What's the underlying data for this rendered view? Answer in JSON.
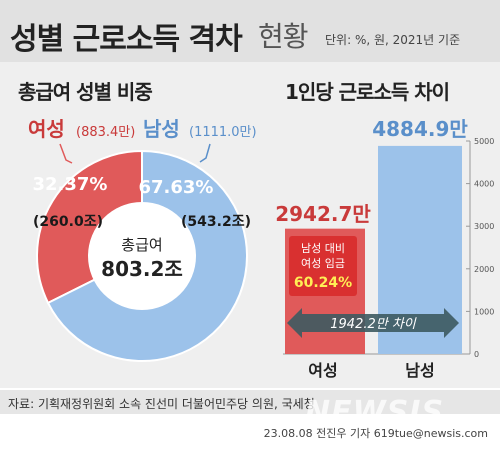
{
  "header": {
    "title": "성별 근로소득 격차",
    "subtitle": "현황",
    "unit_note": "단위: %, 원, 2021년 기준"
  },
  "colors": {
    "female": "#e05a5a",
    "female_dark": "#c93a3a",
    "male": "#9cc2ea",
    "male_text": "#5a8fca",
    "ratio_box": "#d93030",
    "arrow": "#3d5a60"
  },
  "pie": {
    "title": "총급여 성별 비중",
    "center_label": "총급여",
    "center_value": "803.2조",
    "female": {
      "name": "여성",
      "count": "(883.4만)",
      "percent": "32.37%",
      "amount": "(260.0조)"
    },
    "male": {
      "name": "남성",
      "count": "(1111.0만)",
      "percent": "67.63%",
      "amount": "(543.2조)"
    }
  },
  "bar": {
    "title": "1인당 근로소득 차이",
    "female_value": "2942.7만",
    "male_value": "4884.9만",
    "ratio_lines": [
      "남성 대비",
      "여성 임금"
    ],
    "ratio_value": "60.24%",
    "diff_label": "1942.2만 차이",
    "cat_female": "여성",
    "cat_male": "남성"
  },
  "chart_data": [
    {
      "type": "pie",
      "title": "총급여 성별 비중",
      "categories": [
        "여성",
        "남성"
      ],
      "values": [
        32.37,
        67.63
      ],
      "amounts_trillion_won": [
        260.0,
        543.2
      ],
      "workers_ten_thousand": [
        883.4,
        1111.0
      ],
      "total": 803.2
    },
    {
      "type": "bar",
      "title": "1인당 근로소득 차이",
      "categories": [
        "여성",
        "남성"
      ],
      "values": [
        2942.7,
        4884.9
      ],
      "ylim": [
        0,
        5000
      ],
      "yticks": [
        "0",
        "1000",
        "2000",
        "3000",
        "4000",
        "5000"
      ],
      "ratio_percent": 60.24,
      "difference": 1942.2
    }
  ],
  "footer": {
    "source": "자료: 기획재정위원회 소속 진선미 더불어민주당 의원, 국세청",
    "watermark": "NEWSIS",
    "credit": "23.08.08 전진우 기자 619tue@newsis.com"
  }
}
